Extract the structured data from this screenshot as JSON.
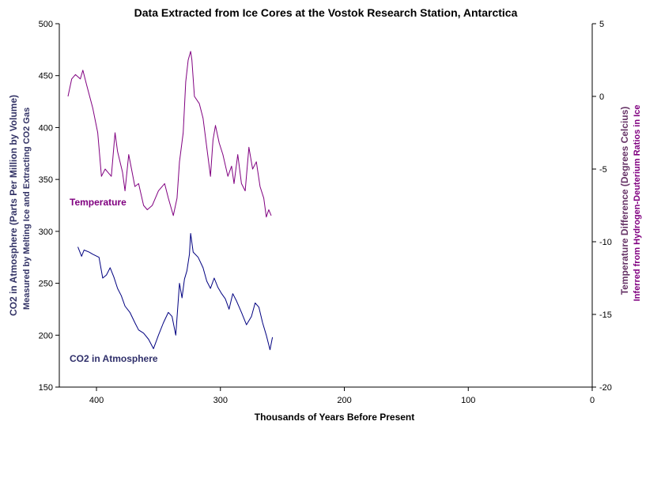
{
  "chart_data": {
    "type": "line",
    "title": "Data Extracted from Ice Cores at the Vostok Research Station, Antarctica",
    "xlabel": "Thousands of Years Before Present",
    "xlim": [
      430,
      0
    ],
    "xticks": [
      "400",
      "300",
      "200",
      "100",
      "0"
    ],
    "xtick_values": [
      400,
      300,
      200,
      100,
      0
    ],
    "ylabel_left": "CO2 in Atmosphere (Parts Per Million by Volume)",
    "ylabel_left_sub": "Measured by Melting Ice and Extracting CO2 Gas",
    "ylim_left": [
      150,
      500
    ],
    "yticks_left": [
      "500",
      "450",
      "400",
      "350",
      "300",
      "250",
      "200",
      "150"
    ],
    "ytick_values_left": [
      500,
      450,
      400,
      350,
      300,
      250,
      200,
      150
    ],
    "ylabel_right": "Temperature Difference (Degrees Celcius)",
    "ylabel_right_sub": "Inferred from Hydrogen-Deuterium Ratios in Ice",
    "ylim_right": [
      -20,
      5
    ],
    "yticks_right": [
      "5",
      "0",
      "-5",
      "-10",
      "-15",
      "-20"
    ],
    "ytick_values_right": [
      5,
      0,
      -5,
      -10,
      -15,
      -20
    ],
    "grid": false,
    "series": [
      {
        "name": "Temperature",
        "axis": "right",
        "color": "#800080",
        "x": [
          423,
          420,
          417,
          413,
          411,
          408,
          403,
          399,
          396,
          393,
          391,
          388,
          385,
          383,
          379,
          377,
          374,
          369,
          366,
          362,
          359,
          355,
          350,
          345,
          342,
          338,
          335,
          333,
          330,
          328,
          326,
          324,
          323,
          321,
          317,
          314,
          311,
          308,
          306,
          304,
          301,
          298,
          294,
          291,
          289,
          286,
          283,
          280,
          277,
          274,
          271,
          268,
          265,
          263,
          261,
          259
        ],
        "y": [
          0.0,
          1.2,
          1.5,
          1.2,
          1.8,
          0.8,
          -0.8,
          -2.5,
          -5.5,
          -5.0,
          -5.2,
          -5.5,
          -2.5,
          -3.8,
          -5.2,
          -6.5,
          -4.0,
          -6.2,
          -6.0,
          -7.5,
          -7.8,
          -7.5,
          -6.5,
          -6.0,
          -7.0,
          -8.2,
          -7.0,
          -4.5,
          -2.5,
          1.0,
          2.5,
          3.1,
          2.5,
          0.0,
          -0.5,
          -1.5,
          -3.5,
          -5.5,
          -3.0,
          -2.0,
          -3.2,
          -4.0,
          -5.5,
          -4.8,
          -6.0,
          -4.0,
          -6.0,
          -6.5,
          -3.5,
          -5.0,
          -4.5,
          -6.2,
          -7.0,
          -8.3,
          -7.8,
          -8.2
        ]
      },
      {
        "name": "CO2 in Atmosphere",
        "axis": "left",
        "color": "#000080",
        "x": [
          415,
          412,
          410,
          406,
          403,
          398,
          395,
          392,
          389,
          386,
          383,
          380,
          377,
          373,
          369,
          366,
          362,
          358,
          354,
          350,
          346,
          342,
          339,
          336,
          333,
          331,
          329,
          327,
          325,
          324,
          322,
          318,
          314,
          311,
          308,
          305,
          302,
          299,
          296,
          293,
          290,
          287,
          283,
          279,
          275,
          272,
          269,
          266,
          263,
          260,
          258
        ],
        "y": [
          285,
          276,
          282,
          280,
          278,
          275,
          255,
          258,
          265,
          256,
          245,
          238,
          228,
          222,
          212,
          205,
          202,
          196,
          187,
          200,
          212,
          222,
          218,
          200,
          250,
          236,
          254,
          262,
          278,
          298,
          280,
          275,
          265,
          252,
          245,
          255,
          246,
          240,
          235,
          225,
          240,
          233,
          222,
          210,
          218,
          231,
          227,
          212,
          200,
          186,
          198
        ]
      }
    ]
  }
}
